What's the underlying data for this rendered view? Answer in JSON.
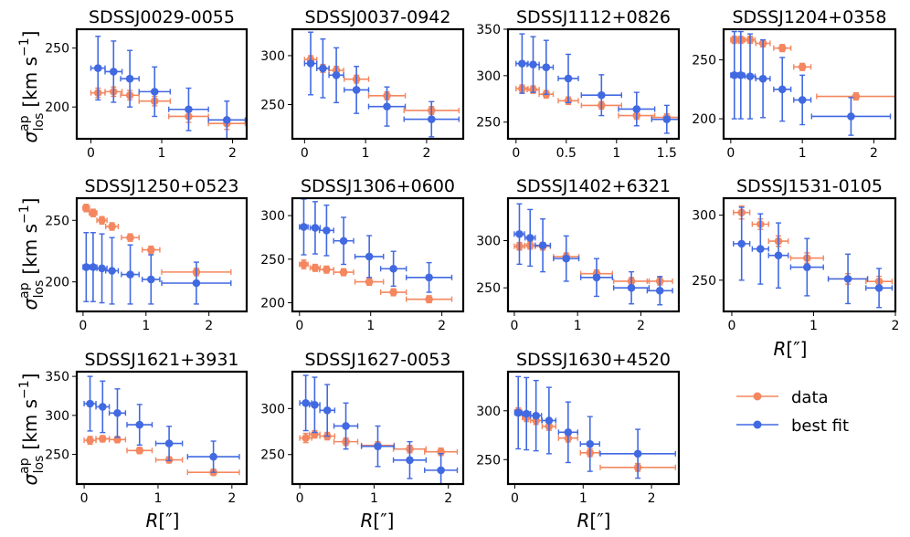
{
  "figure": {
    "ylabel_main": "σ",
    "ylabel_sup": "ap",
    "ylabel_sub": "los",
    "ylabel_units": "[km s",
    "ylabel_exp": "−1",
    "ylabel_close": "]",
    "xlabel_main": "R",
    "xlabel_units": "[″]",
    "legend": [
      "data",
      "best fit"
    ]
  },
  "colors": {
    "data": "#f4875f",
    "fit": "#4169e1"
  },
  "chart_data": [
    {
      "type": "scatter",
      "title": "SDSSJ0029-0055",
      "xlim": [
        -0.2,
        2.2
      ],
      "ylim": [
        173,
        266
      ],
      "xticks": [
        0,
        1,
        2
      ],
      "yticks": [
        200,
        250
      ],
      "series": [
        {
          "name": "data",
          "x": [
            0.1,
            0.32,
            0.55,
            0.9,
            1.38,
            1.92
          ],
          "xerr": [
            0.1,
            0.12,
            0.13,
            0.22,
            0.28,
            0.26
          ],
          "y": [
            212,
            213,
            210,
            205,
            192,
            186
          ],
          "yerr": [
            4,
            4,
            4,
            4,
            5,
            5
          ]
        },
        {
          "name": "best fit",
          "x": [
            0.1,
            0.32,
            0.55,
            0.9,
            1.38,
            1.92
          ],
          "xerr": [
            0.1,
            0.12,
            0.13,
            0.22,
            0.28,
            0.26
          ],
          "y": [
            233,
            230,
            224,
            213,
            198,
            189
          ],
          "yerr": [
            27,
            26,
            24,
            21,
            18,
            16
          ]
        }
      ]
    },
    {
      "type": "scatter",
      "title": "SDSSJ0037-0942",
      "xlim": [
        -0.2,
        2.6
      ],
      "ylim": [
        215,
        327
      ],
      "xticks": [
        0,
        1,
        2
      ],
      "yticks": [
        250,
        300
      ],
      "series": [
        {
          "name": "data",
          "x": [
            0.1,
            0.3,
            0.52,
            0.85,
            1.35,
            2.08
          ],
          "xerr": [
            0.1,
            0.1,
            0.12,
            0.2,
            0.3,
            0.45
          ],
          "y": [
            296,
            287,
            285,
            276,
            259,
            244
          ],
          "yerr": [
            4,
            4,
            4,
            4,
            4,
            4
          ]
        },
        {
          "name": "best fit",
          "x": [
            0.1,
            0.3,
            0.52,
            0.85,
            1.35,
            2.08
          ],
          "xerr": [
            0.1,
            0.1,
            0.12,
            0.2,
            0.3,
            0.45
          ],
          "y": [
            292,
            287,
            280,
            265,
            248,
            235
          ],
          "yerr": [
            32,
            30,
            28,
            24,
            20,
            18
          ]
        }
      ]
    },
    {
      "type": "scatter",
      "title": "SDSSJ1112+0826",
      "xlim": [
        -0.08,
        1.62
      ],
      "ylim": [
        232,
        350
      ],
      "xticks": [
        0,
        0.5,
        1,
        1.5
      ],
      "yticks": [
        250,
        300,
        350
      ],
      "series": [
        {
          "name": "data",
          "x": [
            0.06,
            0.17,
            0.3,
            0.52,
            0.85,
            1.2,
            1.5
          ],
          "xerr": [
            0.06,
            0.06,
            0.07,
            0.1,
            0.2,
            0.18,
            0.15
          ],
          "y": [
            286,
            285,
            280,
            273,
            268,
            257,
            255
          ],
          "yerr": [
            4,
            4,
            4,
            4,
            4,
            4,
            4
          ]
        },
        {
          "name": "best fit",
          "x": [
            0.06,
            0.17,
            0.3,
            0.52,
            0.85,
            1.2,
            1.5
          ],
          "xerr": [
            0.06,
            0.06,
            0.07,
            0.1,
            0.2,
            0.18,
            0.15
          ],
          "y": [
            313,
            312,
            309,
            297,
            279,
            264,
            253
          ],
          "yerr": [
            32,
            30,
            29,
            26,
            22,
            18,
            15
          ]
        }
      ]
    },
    {
      "type": "scatter",
      "title": "SDSSJ1204+0358",
      "xlim": [
        -0.1,
        2.3
      ],
      "ylim": [
        183,
        276
      ],
      "xticks": [
        0,
        1,
        2
      ],
      "yticks": [
        200,
        250
      ],
      "series": [
        {
          "name": "data",
          "x": [
            0.05,
            0.14,
            0.27,
            0.45,
            0.72,
            1.0,
            1.75
          ],
          "xerr": [
            0.05,
            0.05,
            0.07,
            0.1,
            0.12,
            0.12,
            0.55
          ],
          "y": [
            267,
            267,
            267,
            264,
            260,
            244,
            219
          ],
          "yerr": [
            3,
            3,
            3,
            3,
            3,
            3,
            3
          ]
        },
        {
          "name": "best fit",
          "x": [
            0.05,
            0.14,
            0.27,
            0.45,
            0.72,
            1.0,
            1.68
          ],
          "xerr": [
            0.05,
            0.05,
            0.07,
            0.1,
            0.12,
            0.12,
            0.55
          ],
          "y": [
            237,
            237,
            236,
            234,
            225,
            216,
            202
          ],
          "yerr": [
            37,
            37,
            36,
            33,
            27,
            21,
            16
          ]
        }
      ]
    },
    {
      "type": "scatter",
      "title": "SDSSJ1250+0523",
      "xlim": [
        -0.1,
        2.6
      ],
      "ylim": [
        176,
        268
      ],
      "xticks": [
        0,
        1,
        2
      ],
      "yticks": [
        200,
        250
      ],
      "series": [
        {
          "name": "data",
          "x": [
            0.05,
            0.16,
            0.3,
            0.46,
            0.75,
            1.08,
            1.8
          ],
          "xerr": [
            0.05,
            0.06,
            0.08,
            0.1,
            0.14,
            0.14,
            0.55
          ],
          "y": [
            260,
            256,
            250,
            245,
            236,
            226,
            208
          ],
          "yerr": [
            3,
            3,
            3,
            3,
            3,
            3,
            3
          ]
        },
        {
          "name": "best fit",
          "x": [
            0.05,
            0.16,
            0.3,
            0.46,
            0.75,
            1.08,
            1.8
          ],
          "xerr": [
            0.05,
            0.06,
            0.08,
            0.1,
            0.14,
            0.14,
            0.55
          ],
          "y": [
            212,
            212,
            211,
            209,
            206,
            202,
            199
          ],
          "yerr": [
            28,
            28,
            28,
            27,
            24,
            20,
            17
          ]
        }
      ]
    },
    {
      "type": "scatter",
      "title": "SDSSJ1306+0600",
      "xlim": [
        -0.1,
        2.3
      ],
      "ylim": [
        190,
        320
      ],
      "xticks": [
        0,
        1,
        2
      ],
      "yticks": [
        200,
        250,
        300
      ],
      "series": [
        {
          "name": "data",
          "x": [
            0.06,
            0.22,
            0.38,
            0.62,
            0.98,
            1.32,
            1.82
          ],
          "xerr": [
            0.06,
            0.07,
            0.1,
            0.14,
            0.2,
            0.18,
            0.32
          ],
          "y": [
            244,
            240,
            238,
            235,
            224,
            212,
            204
          ],
          "yerr": [
            5,
            4,
            4,
            4,
            4,
            4,
            4
          ]
        },
        {
          "name": "best fit",
          "x": [
            0.06,
            0.22,
            0.38,
            0.62,
            0.98,
            1.32,
            1.82
          ],
          "xerr": [
            0.06,
            0.07,
            0.1,
            0.14,
            0.2,
            0.18,
            0.32
          ],
          "y": [
            287,
            286,
            283,
            271,
            253,
            239,
            229
          ],
          "yerr": [
            32,
            30,
            29,
            27,
            24,
            20,
            17
          ]
        }
      ]
    },
    {
      "type": "scatter",
      "title": "SDSSJ1402+6321",
      "xlim": [
        -0.1,
        2.6
      ],
      "ylim": [
        225,
        345
      ],
      "xticks": [
        0,
        1,
        2
      ],
      "yticks": [
        250,
        300
      ],
      "series": [
        {
          "name": "data",
          "x": [
            0.08,
            0.25,
            0.45,
            0.82,
            1.3,
            1.85,
            2.3
          ],
          "xerr": [
            0.08,
            0.08,
            0.12,
            0.2,
            0.25,
            0.28,
            0.2
          ],
          "y": [
            294,
            295,
            294,
            283,
            265,
            257,
            257
          ],
          "yerr": [
            4,
            4,
            4,
            4,
            4,
            4,
            4
          ]
        },
        {
          "name": "best fit",
          "x": [
            0.08,
            0.25,
            0.45,
            0.82,
            1.3,
            1.85,
            2.3
          ],
          "xerr": [
            0.08,
            0.08,
            0.12,
            0.2,
            0.25,
            0.28,
            0.2
          ],
          "y": [
            307,
            303,
            295,
            281,
            261,
            250,
            247
          ],
          "yerr": [
            32,
            30,
            28,
            24,
            20,
            17,
            15
          ]
        }
      ]
    },
    {
      "type": "scatter",
      "title": "SDSSJ1531-0105",
      "xlim": [
        -0.1,
        2.0
      ],
      "ylim": [
        226,
        313
      ],
      "xticks": [
        0,
        1,
        2
      ],
      "yticks": [
        250,
        300
      ],
      "series": [
        {
          "name": "data",
          "x": [
            0.12,
            0.35,
            0.57,
            0.92,
            1.42,
            1.8
          ],
          "xerr": [
            0.1,
            0.1,
            0.12,
            0.2,
            0.24,
            0.16
          ],
          "y": [
            302,
            293,
            280,
            267,
            251,
            249
          ],
          "yerr": [
            5,
            4,
            4,
            4,
            4,
            4
          ]
        },
        {
          "name": "best fit",
          "x": [
            0.12,
            0.35,
            0.57,
            0.92,
            1.42,
            1.8
          ],
          "xerr": [
            0.1,
            0.1,
            0.12,
            0.2,
            0.24,
            0.16
          ],
          "y": [
            278,
            274,
            269,
            260,
            251,
            244
          ],
          "yerr": [
            28,
            27,
            25,
            22,
            19,
            15
          ]
        }
      ]
    },
    {
      "type": "scatter",
      "title": "SDSSJ1621+3931",
      "xlim": [
        -0.1,
        2.2
      ],
      "ylim": [
        212,
        356
      ],
      "xticks": [
        0,
        1,
        2
      ],
      "yticks": [
        250,
        300,
        350
      ],
      "series": [
        {
          "name": "data",
          "x": [
            0.08,
            0.25,
            0.45,
            0.75,
            1.15,
            1.75
          ],
          "xerr": [
            0.08,
            0.09,
            0.11,
            0.17,
            0.18,
            0.35
          ],
          "y": [
            268,
            270,
            269,
            255,
            243,
            227
          ],
          "yerr": [
            5,
            4,
            4,
            4,
            4,
            4
          ]
        },
        {
          "name": "best fit",
          "x": [
            0.08,
            0.25,
            0.45,
            0.75,
            1.15,
            1.75
          ],
          "xerr": [
            0.08,
            0.09,
            0.11,
            0.17,
            0.18,
            0.35
          ],
          "y": [
            315,
            311,
            303,
            288,
            264,
            247
          ],
          "yerr": [
            35,
            33,
            31,
            26,
            22,
            20
          ]
        }
      ]
    },
    {
      "type": "scatter",
      "title": "SDSSJ1627-0053",
      "xlim": [
        -0.1,
        2.2
      ],
      "ylim": [
        218,
        340
      ],
      "xticks": [
        0,
        1,
        2
      ],
      "yticks": [
        250,
        300
      ],
      "series": [
        {
          "name": "data",
          "x": [
            0.08,
            0.2,
            0.37,
            0.62,
            1.05,
            1.48,
            1.9
          ],
          "xerr": [
            0.08,
            0.07,
            0.1,
            0.16,
            0.22,
            0.22,
            0.22
          ],
          "y": [
            268,
            272,
            270,
            264,
            260,
            256,
            253
          ],
          "yerr": [
            5,
            4,
            4,
            4,
            4,
            4,
            4
          ]
        },
        {
          "name": "best fit",
          "x": [
            0.08,
            0.2,
            0.37,
            0.62,
            1.05,
            1.48,
            1.9
          ],
          "xerr": [
            0.08,
            0.07,
            0.1,
            0.16,
            0.22,
            0.22,
            0.22
          ],
          "y": [
            306,
            304,
            298,
            281,
            259,
            244,
            233
          ],
          "yerr": [
            30,
            30,
            28,
            25,
            22,
            20,
            18
          ]
        }
      ]
    },
    {
      "type": "scatter",
      "title": "SDSSJ1630+4520",
      "xlim": [
        -0.1,
        2.4
      ],
      "ylim": [
        225,
        340
      ],
      "xticks": [
        0,
        1,
        2
      ],
      "yticks": [
        250,
        300
      ],
      "series": [
        {
          "name": "data",
          "x": [
            0.05,
            0.17,
            0.31,
            0.5,
            0.78,
            1.1,
            1.8
          ],
          "xerr": [
            0.05,
            0.06,
            0.08,
            0.1,
            0.14,
            0.14,
            0.55
          ],
          "y": [
            299,
            293,
            290,
            284,
            272,
            257,
            242
          ],
          "yerr": [
            4,
            4,
            4,
            4,
            4,
            4,
            4
          ]
        },
        {
          "name": "best fit",
          "x": [
            0.05,
            0.17,
            0.31,
            0.5,
            0.78,
            1.1,
            1.8
          ],
          "xerr": [
            0.05,
            0.06,
            0.08,
            0.1,
            0.14,
            0.14,
            0.55
          ],
          "y": [
            298,
            297,
            295,
            290,
            278,
            266,
            256
          ],
          "yerr": [
            37,
            37,
            36,
            34,
            31,
            28,
            25
          ]
        }
      ]
    }
  ]
}
